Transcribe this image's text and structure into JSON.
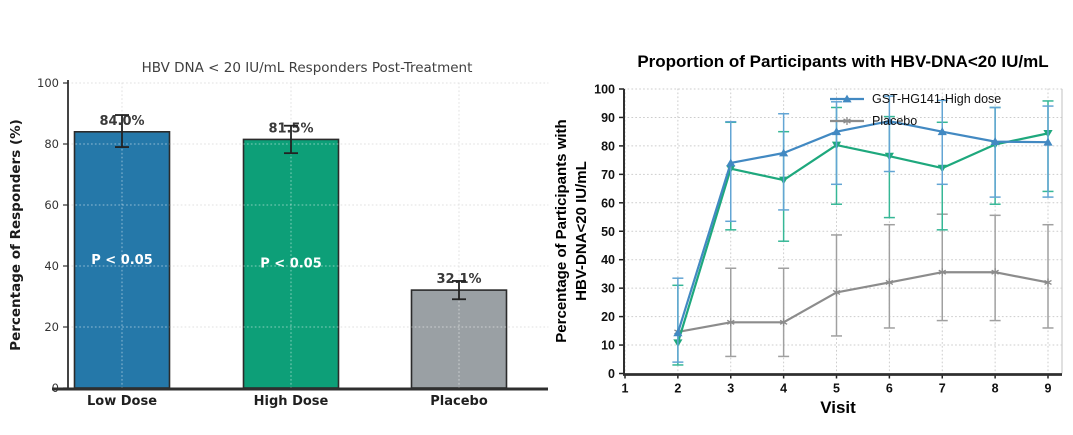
{
  "page": {
    "background": "#ffffff"
  },
  "chart_data": [
    {
      "type": "bar",
      "title": "HBV DNA < 20 IU/mL Responders Post-Treatment",
      "ylabel": "Percentage of Responders (%)",
      "categories": [
        "Low Dose",
        "High Dose",
        "Placebo"
      ],
      "values": [
        84.0,
        81.5,
        32.1
      ],
      "value_labels": [
        "84.0%",
        "81.5%",
        "32.1%"
      ],
      "error_low": [
        79.0,
        77.0,
        29.1
      ],
      "error_high": [
        89.5,
        86.0,
        35.1
      ],
      "bar_annotations": [
        "P < 0.05",
        "P < 0.05",
        ""
      ],
      "bar_colors": [
        "#2578a9",
        "#0d9f78",
        "#9aa0a4"
      ],
      "bar_edge_color": "#2b2b2b",
      "error_color": "#222222",
      "ylim": [
        0,
        100
      ],
      "yticks": [
        0,
        20,
        40,
        60,
        80,
        100
      ],
      "grid": "dotted"
    },
    {
      "type": "line",
      "title": "Proportion of Participants with HBV-DNA<20 IU/mL",
      "xlabel": "Visit",
      "ylabel_lines": [
        "Percentage of Participants with",
        "HBV-DNA<20 IU/mL"
      ],
      "x": [
        2,
        3,
        4,
        5,
        6,
        7,
        8,
        9
      ],
      "xticks": [
        1,
        2,
        3,
        4,
        5,
        6,
        7,
        8,
        9
      ],
      "xlim": [
        1,
        9.3
      ],
      "ylim": [
        0,
        100
      ],
      "yticks": [
        0,
        10,
        20,
        30,
        40,
        50,
        60,
        70,
        80,
        90,
        100
      ],
      "grid": "dotted",
      "legend_position": "upper right",
      "series": [
        {
          "name": "GST-HG141-High dose",
          "color": "#4289c2",
          "err_color": "#63a5d4",
          "marker": "triangle-up",
          "in_legend": true,
          "values": [
            14.3,
            74.0,
            77.5,
            85.0,
            88.7,
            85.0,
            81.5,
            81.3
          ],
          "err_low": [
            4.0,
            53.5,
            57.5,
            66.5,
            71.0,
            66.5,
            62.0,
            62.0
          ],
          "err_high": [
            33.5,
            88.5,
            91.3,
            95.5,
            97.5,
            96.0,
            93.5,
            94.0
          ]
        },
        {
          "name": "",
          "color": "#1ea87d",
          "err_color": "#36b796",
          "marker": "triangle-down",
          "in_legend": false,
          "values": [
            10.8,
            72.0,
            68.0,
            80.3,
            76.4,
            72.2,
            80.5,
            84.4
          ],
          "err_low": [
            3.0,
            50.5,
            46.5,
            59.5,
            54.8,
            50.5,
            59.5,
            64.0
          ],
          "err_high": [
            31.0,
            88.3,
            85.0,
            93.5,
            90.3,
            88.3,
            93.5,
            95.8
          ]
        },
        {
          "name": "Placebo",
          "color": "#8c8c8c",
          "err_color": "#a0a0a0",
          "marker": "star",
          "in_legend": true,
          "values": [
            14.6,
            18.0,
            18.0,
            28.5,
            32.0,
            35.6,
            35.6,
            32.0
          ],
          "err_low": [
            14.6,
            6.0,
            6.0,
            13.2,
            16.0,
            18.6,
            18.6,
            16.0
          ],
          "err_high": [
            14.6,
            37.0,
            37.0,
            48.7,
            52.3,
            56.0,
            55.6,
            52.3
          ]
        }
      ]
    }
  ]
}
